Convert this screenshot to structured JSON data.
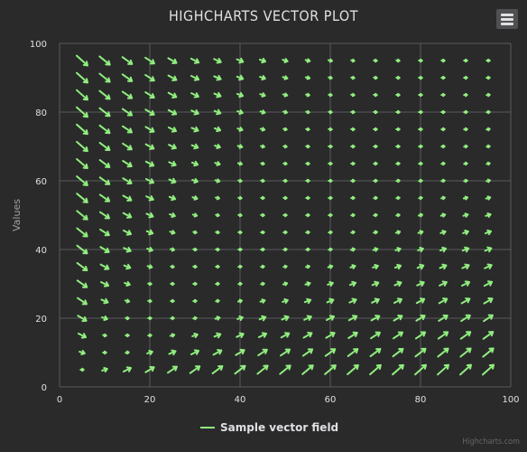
{
  "chart_data": {
    "type": "vector",
    "title": "HIGHCHARTS VECTOR PLOT",
    "ylabel": "Values",
    "xlim": [
      0,
      100
    ],
    "ylim": [
      0,
      100
    ],
    "x_ticks": [
      0,
      20,
      40,
      60,
      80,
      100
    ],
    "y_ticks": [
      0,
      20,
      40,
      60,
      80,
      100
    ],
    "grid": true,
    "legend_position": "bottom-center",
    "series": [
      {
        "name": "Sample vector field",
        "color": "#90ee7e",
        "grid_x": [
          5,
          10,
          15,
          20,
          25,
          30,
          35,
          40,
          45,
          50,
          55,
          60,
          65,
          70,
          75,
          80,
          85,
          90,
          95
        ],
        "grid_y": [
          5,
          10,
          15,
          20,
          25,
          30,
          35,
          40,
          45,
          50,
          55,
          60,
          65,
          70,
          75,
          80,
          85,
          90,
          95
        ],
        "vector_rule": "length = 2*|(x-y)/(x+y)|, direction = atan2(x+y, x-y) degrees"
      }
    ]
  },
  "credits": "Highcharts.com",
  "menu_icon": "hamburger-icon"
}
